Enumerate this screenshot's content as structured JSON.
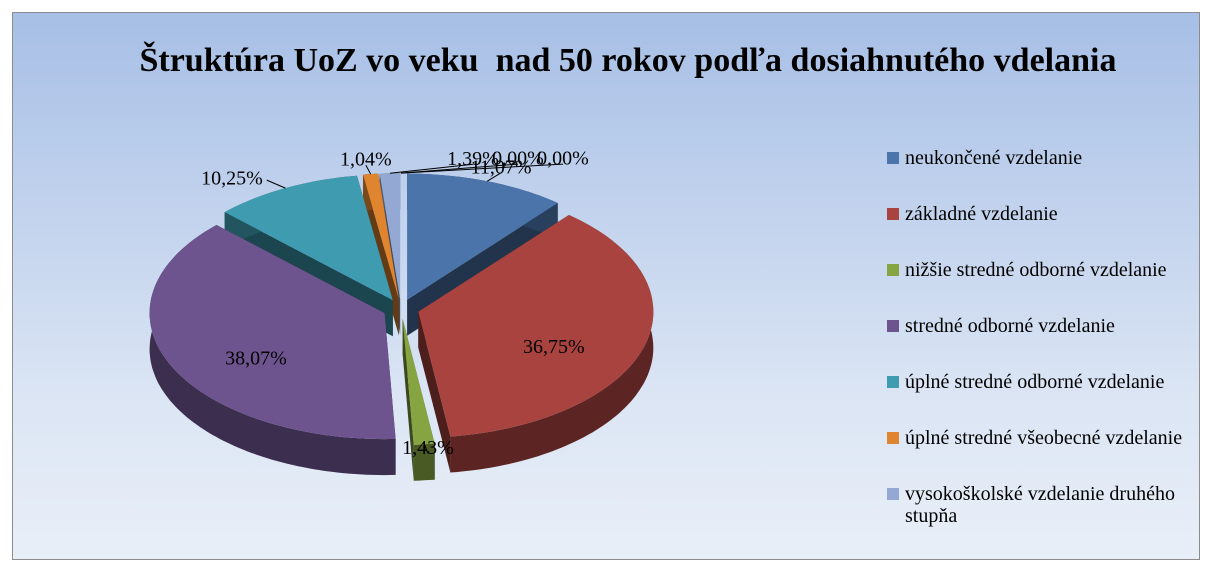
{
  "chart_data": {
    "type": "pie3d",
    "title": "Štruktúra UoZ vo veku  nad 50 rokov podľa dosiahnutého vdelania",
    "categories": [
      "neukončené vzdelanie",
      "základné vzdelanie",
      "nižšie stredné odborné vzdelanie",
      "stredné odborné vzdelanie",
      "úplné stredné odborné vzdelanie",
      "úplné stredné všeobecné vzdelanie",
      "vysokoškolské vzdelanie druhého stupňa",
      null,
      null
    ],
    "values": [
      11.07,
      36.75,
      1.43,
      38.07,
      10.25,
      1.04,
      1.39,
      0.0,
      0.0
    ],
    "value_labels": [
      "11,07%",
      "36,75%",
      "1,43%",
      "38,07%",
      "10,25%",
      "1,04%",
      "1,39%",
      "0,00%",
      "0,00%"
    ],
    "colors": [
      "#4a74aa",
      "#a9433f",
      "#87a443",
      "#6e548f",
      "#3e9bb0",
      "#e0852f",
      "#93a9d4",
      "#a5c05a",
      "#8c6fb0"
    ],
    "legend": "right"
  }
}
